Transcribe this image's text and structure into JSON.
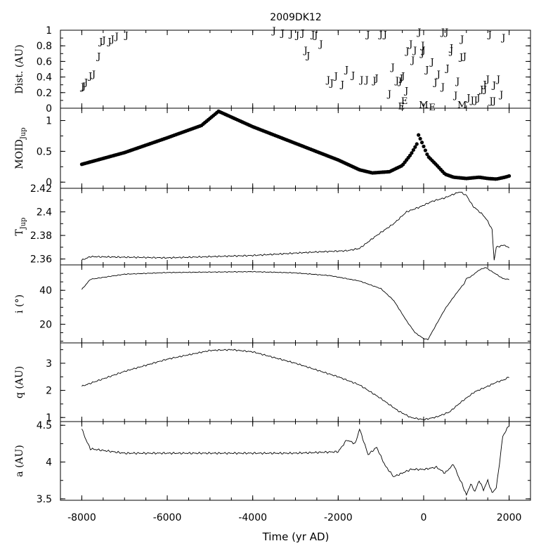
{
  "chart_data": {
    "type": "line",
    "title": "2009DK12",
    "xlabel": "Time (yr AD)",
    "xlim": [
      -8500,
      2500
    ],
    "xticks": [
      -8000,
      -6000,
      -4000,
      -2000,
      0,
      2000
    ],
    "xtick_labels": [
      "-8000",
      "-6000",
      "-4000",
      "-2000",
      "0",
      "2000"
    ],
    "panels": [
      {
        "id": "dist",
        "type": "scatter",
        "ylabel": "Dist. (AU)",
        "ylim": [
          0,
          1
        ],
        "yticks": [
          0,
          0.2,
          0.4,
          0.6,
          0.8,
          1
        ],
        "ytick_labels": [
          "0",
          "0.2",
          "0.4",
          "0.6",
          "0.8",
          "1"
        ],
        "series": [
          {
            "name": "J",
            "points": [
              [
                -7980,
                0.28
              ],
              [
                -7950,
                0.29
              ],
              [
                -7900,
                0.34
              ],
              [
                -7800,
                0.42
              ],
              [
                -7720,
                0.44
              ],
              [
                -7600,
                0.67
              ],
              [
                -7550,
                0.86
              ],
              [
                -7480,
                0.88
              ],
              [
                -7350,
                0.86
              ],
              [
                -7280,
                0.89
              ],
              [
                -7180,
                0.93
              ],
              [
                -6950,
                0.94
              ],
              [
                -3500,
                1.0
              ],
              [
                -3300,
                0.97
              ],
              [
                -3100,
                0.96
              ],
              [
                -2950,
                0.94
              ],
              [
                -2830,
                0.97
              ],
              [
                -2760,
                0.75
              ],
              [
                -2700,
                0.68
              ],
              [
                -2590,
                0.95
              ],
              [
                -2520,
                0.94
              ],
              [
                -2400,
                0.83
              ],
              [
                -2230,
                0.37
              ],
              [
                -2150,
                0.33
              ],
              [
                -2050,
                0.42
              ],
              [
                -1900,
                0.31
              ],
              [
                -1800,
                0.5
              ],
              [
                -1650,
                0.43
              ],
              [
                -1450,
                0.37
              ],
              [
                -1330,
                0.37
              ],
              [
                -1150,
                0.36
              ],
              [
                -1100,
                0.39
              ],
              [
                -1300,
                0.95
              ],
              [
                -1000,
                0.95
              ],
              [
                -900,
                0.95
              ],
              [
                -800,
                0.19
              ],
              [
                -720,
                0.53
              ],
              [
                -620,
                0.36
              ],
              [
                -550,
                0.35
              ],
              [
                -520,
                0.39
              ],
              [
                -480,
                0.42
              ],
              [
                -400,
                0.23
              ],
              [
                -380,
                0.74
              ],
              [
                -300,
                0.83
              ],
              [
                -250,
                0.62
              ],
              [
                -200,
                0.75
              ],
              [
                -100,
                0.98
              ],
              [
                -20,
                0.81
              ],
              [
                0,
                0.75
              ],
              [
                -30,
                0.71
              ],
              [
                80,
                0.5
              ],
              [
                200,
                0.6
              ],
              [
                280,
                0.34
              ],
              [
                350,
                0.44
              ],
              [
                450,
                0.28
              ],
              [
                450,
                0.98
              ],
              [
                540,
                0.98
              ],
              [
                560,
                0.52
              ],
              [
                650,
                0.74
              ],
              [
                650,
                0.78
              ],
              [
                800,
                0.35
              ],
              [
                900,
                0.89
              ],
              [
                750,
                0.17
              ],
              [
                880,
                0.66
              ],
              [
                960,
                0.67
              ],
              [
                1050,
                0.14
              ],
              [
                1140,
                0.11
              ],
              [
                1220,
                0.11
              ],
              [
                1280,
                0.14
              ],
              [
                1360,
                0.25
              ],
              [
                1430,
                0.31
              ],
              [
                1440,
                0.25
              ],
              [
                1500,
                0.38
              ],
              [
                1550,
                0.95
              ],
              [
                1580,
                0.1
              ],
              [
                1650,
                0.1
              ],
              [
                1650,
                0.3
              ],
              [
                1750,
                0.38
              ],
              [
                1820,
                0.18
              ],
              [
                1870,
                0.91
              ]
            ]
          },
          {
            "name": "E",
            "points": [
              [
                -520,
                0.03
              ],
              [
                -450,
                0.1
              ],
              [
                200,
                0.02
              ]
            ]
          },
          {
            "name": "M",
            "points": [
              [
                0,
                0.05
              ],
              [
                900,
                0.05
              ]
            ]
          }
        ]
      },
      {
        "id": "moid",
        "type": "scatter",
        "ylabel": "MOID",
        "ylabel_sub": "Jup",
        "ylim": [
          -0.1,
          1.2
        ],
        "yticks": [
          0,
          0.5,
          1
        ],
        "ytick_labels": [
          "0",
          "0.5",
          "1"
        ],
        "series": [
          {
            "name": "MOID_Jup",
            "line": [
              [
                -8000,
                0.29
              ],
              [
                -7000,
                0.48
              ],
              [
                -6000,
                0.72
              ],
              [
                -5200,
                0.92
              ],
              [
                -4800,
                1.15
              ],
              [
                -4000,
                0.9
              ],
              [
                -3000,
                0.63
              ],
              [
                -2000,
                0.36
              ],
              [
                -1500,
                0.2
              ],
              [
                -1200,
                0.15
              ],
              [
                -800,
                0.17
              ],
              [
                -500,
                0.27
              ],
              [
                -300,
                0.45
              ],
              [
                -150,
                0.63
              ],
              [
                -130,
                0.78
              ],
              [
                -50,
                0.66
              ],
              [
                100,
                0.42
              ],
              [
                300,
                0.28
              ],
              [
                500,
                0.13
              ],
              [
                700,
                0.08
              ],
              [
                1000,
                0.06
              ],
              [
                1300,
                0.08
              ],
              [
                1500,
                0.06
              ],
              [
                1700,
                0.05
              ],
              [
                1900,
                0.08
              ],
              [
                2000,
                0.1
              ]
            ],
            "marker": "filled-circle",
            "sample_step": 40
          }
        ]
      },
      {
        "id": "tjup",
        "type": "line",
        "ylabel": "T",
        "ylabel_sub": "Jup",
        "ylim": [
          2.355,
          2.42
        ],
        "yticks": [
          2.36,
          2.38,
          2.4,
          2.42
        ],
        "ytick_labels": [
          "2.36",
          "2.38",
          "2.4",
          "2.42"
        ],
        "series": [
          {
            "name": "T_Jup",
            "points": [
              [
                -8000,
                2.359
              ],
              [
                -7800,
                2.362
              ],
              [
                -6000,
                2.361
              ],
              [
                -4000,
                2.363
              ],
              [
                -2500,
                2.366
              ],
              [
                -1800,
                2.367
              ],
              [
                -1500,
                2.369
              ],
              [
                -1100,
                2.38
              ],
              [
                -700,
                2.39
              ],
              [
                -400,
                2.4
              ],
              [
                -100,
                2.404
              ],
              [
                200,
                2.409
              ],
              [
                500,
                2.412
              ],
              [
                700,
                2.415
              ],
              [
                850,
                2.417
              ],
              [
                1000,
                2.414
              ],
              [
                1150,
                2.405
              ],
              [
                1400,
                2.397
              ],
              [
                1500,
                2.392
              ],
              [
                1600,
                2.385
              ],
              [
                1650,
                2.359
              ],
              [
                1700,
                2.37
              ],
              [
                1900,
                2.372
              ],
              [
                1950,
                2.37
              ]
            ],
            "noise": 0.0007
          }
        ]
      },
      {
        "id": "incl",
        "type": "line",
        "ylabel": "i (°)",
        "ylim": [
          9,
          55
        ],
        "yticks": [
          20,
          40
        ],
        "ytick_labels": [
          "20",
          "40"
        ],
        "series": [
          {
            "name": "i",
            "points": [
              [
                -8000,
                40.5
              ],
              [
                -7800,
                46.5
              ],
              [
                -7000,
                49.5
              ],
              [
                -6000,
                50.5
              ],
              [
                -4000,
                51.0
              ],
              [
                -3000,
                50.3
              ],
              [
                -2200,
                48.7
              ],
              [
                -1500,
                45.5
              ],
              [
                -1000,
                41.0
              ],
              [
                -700,
                34.0
              ],
              [
                -400,
                22.0
              ],
              [
                -200,
                15.0
              ],
              [
                0,
                11.5
              ],
              [
                100,
                11.0
              ],
              [
                300,
                20.0
              ],
              [
                500,
                29.0
              ],
              [
                700,
                36.0
              ],
              [
                850,
                41.0
              ],
              [
                950,
                44.0
              ],
              [
                1000,
                47.0
              ],
              [
                1100,
                48.0
              ],
              [
                1200,
                50.0
              ],
              [
                1300,
                52.0
              ],
              [
                1450,
                53.5
              ],
              [
                1600,
                51.0
              ],
              [
                1700,
                49.5
              ],
              [
                1850,
                47.0
              ],
              [
                1950,
                46.5
              ]
            ],
            "noise": 0.25
          }
        ]
      },
      {
        "id": "q",
        "type": "line",
        "ylabel": "q (AU)",
        "ylim": [
          0.85,
          3.75
        ],
        "yticks": [
          1,
          2,
          3
        ],
        "ytick_labels": [
          "1",
          "2",
          "3"
        ],
        "series": [
          {
            "name": "q",
            "points": [
              [
                -8000,
                2.15
              ],
              [
                -7000,
                2.7
              ],
              [
                -6000,
                3.15
              ],
              [
                -5000,
                3.47
              ],
              [
                -4500,
                3.5
              ],
              [
                -4000,
                3.42
              ],
              [
                -3000,
                3.0
              ],
              [
                -2000,
                2.5
              ],
              [
                -1500,
                2.2
              ],
              [
                -1000,
                1.7
              ],
              [
                -600,
                1.25
              ],
              [
                -300,
                1.0
              ],
              [
                0,
                0.92
              ],
              [
                300,
                1.02
              ],
              [
                600,
                1.2
              ],
              [
                900,
                1.6
              ],
              [
                1200,
                1.95
              ],
              [
                1500,
                2.15
              ],
              [
                1700,
                2.3
              ],
              [
                1900,
                2.4
              ],
              [
                2000,
                2.5
              ]
            ],
            "noise": 0.03
          }
        ]
      },
      {
        "id": "a",
        "type": "line",
        "ylabel": "a (AU)",
        "ylim": [
          3.48,
          4.55
        ],
        "yticks": [
          3.5,
          4,
          4.5
        ],
        "ytick_labels": [
          "3.5",
          "4",
          "4.5"
        ],
        "series": [
          {
            "name": "a",
            "points": [
              [
                -8000,
                4.45
              ],
              [
                -7900,
                4.3
              ],
              [
                -7800,
                4.18
              ],
              [
                -7000,
                4.12
              ],
              [
                -5000,
                4.12
              ],
              [
                -3000,
                4.12
              ],
              [
                -2000,
                4.14
              ],
              [
                -1800,
                4.3
              ],
              [
                -1600,
                4.25
              ],
              [
                -1500,
                4.45
              ],
              [
                -1300,
                4.1
              ],
              [
                -1100,
                4.2
              ],
              [
                -900,
                3.95
              ],
              [
                -700,
                3.8
              ],
              [
                -500,
                3.85
              ],
              [
                -300,
                3.9
              ],
              [
                0,
                3.9
              ],
              [
                300,
                3.93
              ],
              [
                500,
                3.85
              ],
              [
                700,
                3.97
              ],
              [
                800,
                3.82
              ],
              [
                900,
                3.7
              ],
              [
                1000,
                3.55
              ],
              [
                1100,
                3.7
              ],
              [
                1200,
                3.6
              ],
              [
                1300,
                3.75
              ],
              [
                1400,
                3.62
              ],
              [
                1500,
                3.75
              ],
              [
                1600,
                3.58
              ],
              [
                1700,
                3.65
              ],
              [
                1800,
                4.1
              ],
              [
                1850,
                4.35
              ],
              [
                1950,
                4.45
              ],
              [
                2000,
                4.5
              ]
            ],
            "noise": 0.015
          }
        ]
      }
    ]
  }
}
